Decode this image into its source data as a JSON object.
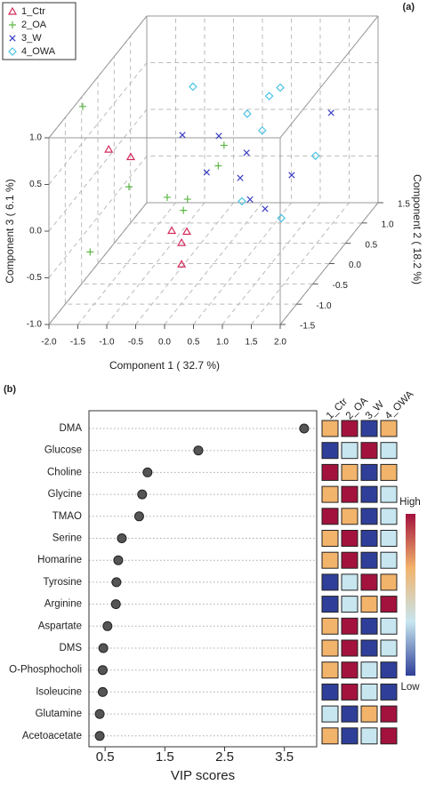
{
  "chart_data": [
    {
      "type": "scatter3d",
      "panel_label": "(a)",
      "xlabel": "Component 1 ( 32.7 %)",
      "ylabel": "Component 2 ( 18.2 %)",
      "zlabel": "Component 3 ( 6.1 %)",
      "xlim": [
        -2,
        2
      ],
      "ylim": [
        -1.5,
        1.5
      ],
      "zlim": [
        -1,
        1
      ],
      "xticks": [
        {
          "value": -2,
          "label": "-2.0"
        },
        -1.5,
        {
          "value": -1,
          "label": "-1.0"
        },
        -0.5,
        {
          "value": 0,
          "label": "0.0"
        },
        0.5,
        {
          "value": 1,
          "label": "1.0"
        },
        1.5,
        {
          "value": 2,
          "label": "2.0"
        }
      ],
      "yticks": [
        -1.5,
        {
          "value": -1,
          "label": "-1.0"
        },
        -0.5,
        {
          "value": 0,
          "label": "0.0"
        },
        0.5,
        {
          "value": 1,
          "label": "1.0"
        },
        1.5
      ],
      "zticks": [
        {
          "value": -1,
          "label": "-1.0"
        },
        -0.5,
        {
          "value": 0,
          "label": "0.0"
        },
        0.5,
        {
          "value": 1,
          "label": "1.0"
        }
      ],
      "grid": true,
      "legend": "top-left",
      "series": [
        {
          "name": "1_Ctr",
          "color": "#d42a5b",
          "marker": "triangle",
          "x": [
            -1.53,
            -1.15,
            -0.18,
            -0.44,
            -0.27,
            -0.27
          ],
          "y": [
            -0.5,
            -0.5,
            -0.5,
            -0.5,
            -0.5,
            -0.5
          ],
          "z": [
            0.44,
            0.36,
            -0.44,
            -0.43,
            -0.56,
            -0.79
          ]
        },
        {
          "name": "2_OA",
          "color": "#5db746",
          "marker": "plus",
          "x": [
            -1.98,
            -1.18,
            -1.57,
            -0.8,
            -0.45,
            -0.52,
            -0.1,
            -0.2
          ],
          "y": [
            -0.5,
            -0.5,
            -1,
            0,
            0,
            0,
            0.5,
            0.5
          ],
          "z": [
            0.9,
            0.04,
            -0.44,
            -0.29,
            -0.31,
            -0.43,
            0.05,
            -0.17
          ]
        },
        {
          "name": "3_W",
          "color": "#3a3dc4",
          "marker": "cross",
          "x": [
            -0.82,
            -0.19,
            -0.4,
            0.29,
            0.18,
            0.35,
            0.61,
            1.07,
            1.47
          ],
          "y": [
            0.5,
            0.5,
            0.5,
            0.5,
            0.5,
            0.5,
            0.5,
            0.5,
            1
          ],
          "z": [
            0.16,
            0.15,
            -0.24,
            -0.03,
            -0.3,
            -0.53,
            -0.63,
            -0.27,
            0.18
          ]
        },
        {
          "name": "4_OWA",
          "color": "#4cc3e6",
          "marker": "diamond",
          "x": [
            -0.92,
            0.02,
            0.4,
            0.59,
            0.28,
            1.2,
            0.21,
            0.89
          ],
          "y": [
            1,
            1,
            1,
            1,
            1,
            1,
            0.5,
            0.5
          ],
          "z": [
            0.46,
            0.17,
            0.36,
            0.45,
            -0.01,
            -0.28,
            -0.55,
            -0.73
          ]
        }
      ]
    },
    {
      "type": "dot",
      "panel_label": "(b)",
      "xlabel": "VIP scores",
      "categories": [
        "DMA",
        "Glucose",
        "Choline",
        "Glycine",
        "TMAO",
        "Serine",
        "Homarine",
        "Tyrosine",
        "Arginine",
        "Aspartate",
        "DMS",
        "O-Phosphocholi",
        "Isoleucine",
        "Glutamine",
        "Acetoacetate"
      ],
      "values": [
        3.83,
        2.06,
        1.21,
        1.12,
        1.07,
        0.78,
        0.72,
        0.69,
        0.68,
        0.54,
        0.47,
        0.46,
        0.46,
        0.41,
        0.41
      ],
      "xlim": [
        0.23,
        4.04
      ],
      "xticks": [
        0.5,
        1.5,
        2.5,
        3.5
      ],
      "color": "#555555",
      "heatmap": {
        "columns": [
          "1_Ctr",
          "2_OA",
          "3_W",
          "4_OWA"
        ],
        "colors": [
          "#2f3f99",
          "#c7e6f0",
          "#f2b36b",
          "#a3123d"
        ],
        "high_label": "High",
        "low_label": "Low",
        "values": [
          [
            3,
            4,
            1,
            3
          ],
          [
            1,
            2,
            4,
            2
          ],
          [
            4,
            3,
            1,
            3
          ],
          [
            3,
            4,
            1,
            2
          ],
          [
            4,
            3,
            1,
            2
          ],
          [
            3,
            4,
            1,
            2
          ],
          [
            3,
            4,
            1,
            2
          ],
          [
            1,
            2,
            4,
            3
          ],
          [
            1,
            2,
            3,
            4
          ],
          [
            3,
            4,
            1,
            2
          ],
          [
            3,
            4,
            1,
            2
          ],
          [
            3,
            4,
            2,
            1
          ],
          [
            1,
            4,
            2,
            1
          ],
          [
            2,
            1,
            3,
            4
          ],
          [
            3,
            1,
            2,
            4
          ]
        ]
      }
    }
  ]
}
